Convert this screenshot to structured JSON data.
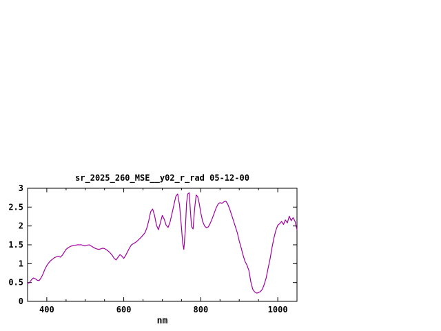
{
  "window": {
    "background": "#ffffff"
  },
  "chart_data": {
    "type": "line",
    "title": "sr_2025_260_MSE__y02_r_rad 05-12-00",
    "xlabel": "nm",
    "ylabel": "",
    "xlim": [
      350,
      1050
    ],
    "ylim": [
      0,
      3
    ],
    "x_ticks": [
      400,
      600,
      800,
      1000
    ],
    "x_minor_step": 50,
    "y_ticks": [
      0,
      0.5,
      1,
      1.5,
      2,
      2.5,
      3
    ],
    "grid": false,
    "legend": "none",
    "line_color": "#a000a0",
    "series": [
      {
        "name": "sr_2025_260_MSE__y02_r_rad",
        "x": [
          350,
          355,
          360,
          365,
          370,
          375,
          380,
          385,
          390,
          395,
          400,
          405,
          410,
          415,
          420,
          425,
          430,
          435,
          440,
          445,
          450,
          455,
          460,
          465,
          470,
          475,
          480,
          485,
          490,
          495,
          500,
          505,
          510,
          515,
          520,
          525,
          530,
          535,
          540,
          545,
          550,
          555,
          560,
          565,
          570,
          575,
          580,
          585,
          590,
          595,
          600,
          605,
          610,
          615,
          620,
          625,
          630,
          635,
          640,
          645,
          650,
          655,
          660,
          665,
          670,
          675,
          680,
          685,
          690,
          695,
          700,
          705,
          710,
          715,
          720,
          725,
          730,
          735,
          740,
          745,
          750,
          753,
          756,
          760,
          763,
          766,
          770,
          773,
          776,
          780,
          784,
          788,
          792,
          796,
          800,
          805,
          810,
          815,
          820,
          825,
          830,
          835,
          840,
          845,
          850,
          855,
          860,
          865,
          870,
          875,
          880,
          885,
          890,
          895,
          900,
          905,
          910,
          915,
          920,
          925,
          930,
          935,
          940,
          945,
          950,
          955,
          960,
          965,
          970,
          975,
          980,
          985,
          990,
          995,
          1000,
          1005,
          1010,
          1015,
          1020,
          1025,
          1030,
          1035,
          1040,
          1045,
          1050
        ],
        "y": [
          0.47,
          0.5,
          0.57,
          0.62,
          0.6,
          0.56,
          0.55,
          0.62,
          0.72,
          0.85,
          0.95,
          1.02,
          1.08,
          1.12,
          1.16,
          1.18,
          1.2,
          1.17,
          1.22,
          1.3,
          1.38,
          1.42,
          1.45,
          1.47,
          1.48,
          1.49,
          1.5,
          1.5,
          1.5,
          1.48,
          1.47,
          1.49,
          1.5,
          1.47,
          1.44,
          1.41,
          1.39,
          1.38,
          1.39,
          1.41,
          1.4,
          1.37,
          1.33,
          1.28,
          1.22,
          1.14,
          1.1,
          1.17,
          1.24,
          1.2,
          1.14,
          1.22,
          1.32,
          1.42,
          1.5,
          1.53,
          1.56,
          1.6,
          1.65,
          1.7,
          1.76,
          1.82,
          1.95,
          2.15,
          2.38,
          2.45,
          2.28,
          2.02,
          1.9,
          2.08,
          2.28,
          2.18,
          2.02,
          1.96,
          2.1,
          2.32,
          2.55,
          2.78,
          2.85,
          2.55,
          1.95,
          1.55,
          1.38,
          1.9,
          2.6,
          2.85,
          2.88,
          2.4,
          1.98,
          1.92,
          2.45,
          2.82,
          2.78,
          2.6,
          2.35,
          2.12,
          2.0,
          1.95,
          1.98,
          2.08,
          2.2,
          2.34,
          2.48,
          2.58,
          2.62,
          2.6,
          2.64,
          2.66,
          2.58,
          2.45,
          2.3,
          2.14,
          1.98,
          1.82,
          1.6,
          1.42,
          1.22,
          1.06,
          0.96,
          0.82,
          0.52,
          0.32,
          0.25,
          0.22,
          0.23,
          0.26,
          0.32,
          0.45,
          0.62,
          0.88,
          1.12,
          1.42,
          1.68,
          1.88,
          2.02,
          2.06,
          2.12,
          2.04,
          2.16,
          2.08,
          2.26,
          2.14,
          2.22,
          2.12,
          1.9
        ]
      }
    ]
  }
}
